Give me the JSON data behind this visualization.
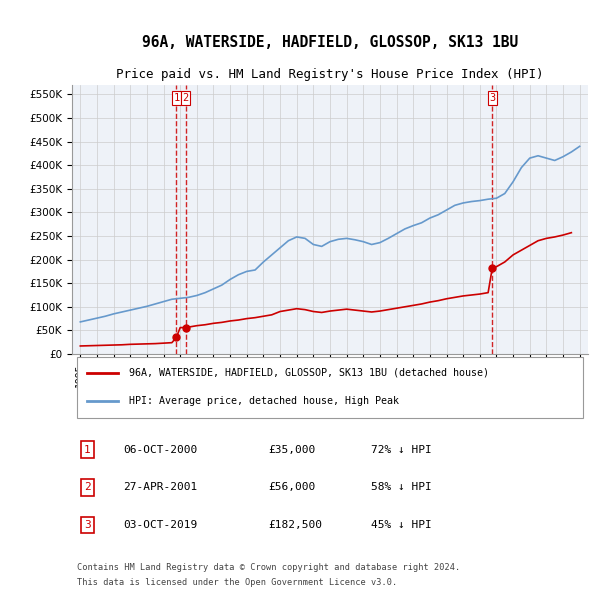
{
  "title": "96A, WATERSIDE, HADFIELD, GLOSSOP, SK13 1BU",
  "subtitle": "Price paid vs. HM Land Registry's House Price Index (HPI)",
  "legend_label_red": "96A, WATERSIDE, HADFIELD, GLOSSOP, SK13 1BU (detached house)",
  "legend_label_blue": "HPI: Average price, detached house, High Peak",
  "footer_line1": "Contains HM Land Registry data © Crown copyright and database right 2024.",
  "footer_line2": "This data is licensed under the Open Government Licence v3.0.",
  "table": [
    {
      "num": "1",
      "date": "06-OCT-2000",
      "price": "£35,000",
      "pct": "72% ↓ HPI"
    },
    {
      "num": "2",
      "date": "27-APR-2001",
      "price": "£56,000",
      "pct": "58% ↓ HPI"
    },
    {
      "num": "3",
      "date": "03-OCT-2019",
      "price": "£182,500",
      "pct": "45% ↓ HPI"
    }
  ],
  "vline_dates": [
    2000.77,
    2001.32,
    2019.75
  ],
  "vline_labels": [
    "1",
    "2",
    "3"
  ],
  "sale_dates": [
    2000.77,
    2001.32,
    2019.75
  ],
  "sale_prices": [
    35000,
    56000,
    182500
  ],
  "hpi_years": [
    1995,
    1995.5,
    1996,
    1996.5,
    1997,
    1997.5,
    1998,
    1998.5,
    1999,
    1999.5,
    2000,
    2000.5,
    2001,
    2001.5,
    2002,
    2002.5,
    2003,
    2003.5,
    2004,
    2004.5,
    2005,
    2005.5,
    2006,
    2006.5,
    2007,
    2007.5,
    2008,
    2008.5,
    2009,
    2009.5,
    2010,
    2010.5,
    2011,
    2011.5,
    2012,
    2012.5,
    2013,
    2013.5,
    2014,
    2014.5,
    2015,
    2015.5,
    2016,
    2016.5,
    2017,
    2017.5,
    2018,
    2018.5,
    2019,
    2019.5,
    2020,
    2020.5,
    2021,
    2021.5,
    2022,
    2022.5,
    2023,
    2023.5,
    2024,
    2024.5,
    2025
  ],
  "hpi_values": [
    68000,
    72000,
    76000,
    80000,
    85000,
    89000,
    93000,
    97000,
    101000,
    106000,
    111000,
    116000,
    118000,
    120000,
    124000,
    130000,
    138000,
    146000,
    158000,
    168000,
    175000,
    178000,
    195000,
    210000,
    225000,
    240000,
    248000,
    245000,
    232000,
    228000,
    238000,
    243000,
    245000,
    242000,
    238000,
    232000,
    236000,
    245000,
    255000,
    265000,
    272000,
    278000,
    288000,
    295000,
    305000,
    315000,
    320000,
    323000,
    325000,
    328000,
    330000,
    340000,
    365000,
    395000,
    415000,
    420000,
    415000,
    410000,
    418000,
    428000,
    440000
  ],
  "price_years": [
    1995,
    1995.5,
    1996,
    1996.5,
    1997,
    1997.5,
    1998,
    1998.5,
    1999,
    1999.5,
    2000,
    2000.5,
    2000.77,
    2001,
    2001.32,
    2001.5,
    2002,
    2002.5,
    2003,
    2003.5,
    2004,
    2004.5,
    2005,
    2005.5,
    2006,
    2006.5,
    2007,
    2007.5,
    2008,
    2008.5,
    2009,
    2009.5,
    2010,
    2010.5,
    2011,
    2011.5,
    2012,
    2012.5,
    2013,
    2013.5,
    2014,
    2014.5,
    2015,
    2015.5,
    2016,
    2016.5,
    2017,
    2017.5,
    2018,
    2018.5,
    2019,
    2019.5,
    2019.75,
    2020,
    2020.5,
    2021,
    2021.5,
    2022,
    2022.5,
    2023,
    2023.5,
    2024,
    2024.5
  ],
  "price_values": [
    17000,
    17500,
    18000,
    18500,
    19000,
    19500,
    20500,
    21000,
    21500,
    22000,
    23000,
    24000,
    35000,
    56000,
    56000,
    57000,
    60000,
    62000,
    65000,
    67000,
    70000,
    72000,
    75000,
    77000,
    80000,
    83000,
    90000,
    93000,
    96000,
    94000,
    90000,
    88000,
    91000,
    93000,
    95000,
    93000,
    91000,
    89000,
    91000,
    94000,
    97000,
    100000,
    103000,
    106000,
    110000,
    113000,
    117000,
    120000,
    123000,
    125000,
    127000,
    130000,
    182500,
    185000,
    195000,
    210000,
    220000,
    230000,
    240000,
    245000,
    248000,
    252000,
    257000
  ],
  "ylim": [
    0,
    570000
  ],
  "xlim": [
    1994.5,
    2025.5
  ],
  "yticks": [
    0,
    50000,
    100000,
    150000,
    200000,
    250000,
    300000,
    350000,
    400000,
    450000,
    500000,
    550000
  ],
  "xticks": [
    1995,
    1996,
    1997,
    1998,
    1999,
    2000,
    2001,
    2002,
    2003,
    2004,
    2005,
    2006,
    2007,
    2008,
    2009,
    2010,
    2011,
    2012,
    2013,
    2014,
    2015,
    2016,
    2017,
    2018,
    2019,
    2020,
    2021,
    2022,
    2023,
    2024,
    2025
  ],
  "red_color": "#cc0000",
  "blue_color": "#6699cc",
  "vline_color": "#cc0000",
  "bg_color": "#ffffff",
  "plot_bg_color": "#eef2f8"
}
